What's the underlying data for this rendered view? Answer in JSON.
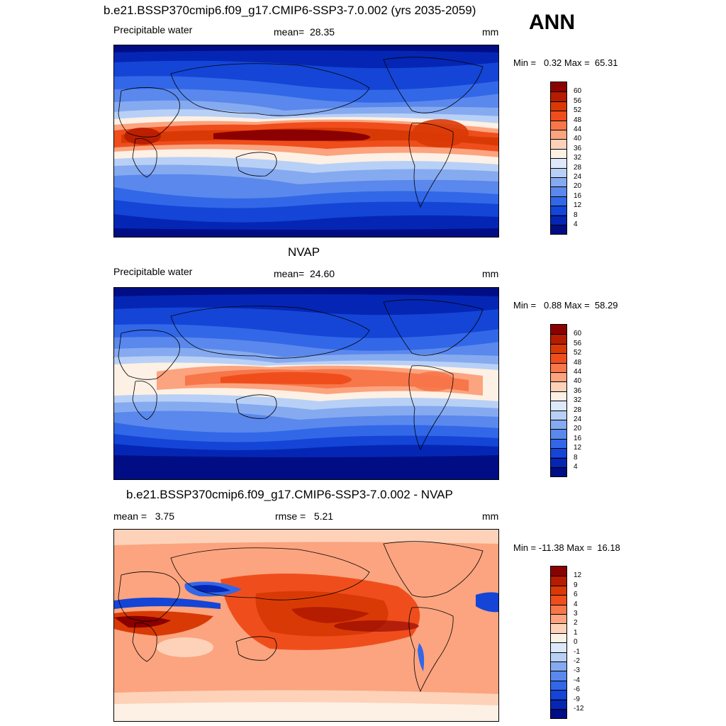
{
  "header": {
    "case_title": "b.e21.BSSP370cmip6.f09_g17.CMIP6-SSP3-7.0.002 (yrs 2035-2059)",
    "season": "ANN"
  },
  "panels": [
    {
      "id": "model",
      "left_label": "Precipitable water",
      "center_label": "mean=  28.35",
      "units": "mm",
      "minmax": "Min =   0.32 Max =  65.31",
      "colorbar": {
        "labels": [
          "60",
          "56",
          "52",
          "48",
          "44",
          "40",
          "36",
          "32",
          "28",
          "24",
          "20",
          "16",
          "12",
          "8",
          "4"
        ],
        "colors": [
          "#8b0000",
          "#b61c00",
          "#d93a05",
          "#ef4e1c",
          "#f7764a",
          "#fba47f",
          "#fdd2b8",
          "#fdf0e4",
          "#dde9fb",
          "#b8d0f6",
          "#86aaf0",
          "#5a88ec",
          "#3267e8",
          "#1445d6",
          "#0526b4",
          "#000d84"
        ]
      }
    },
    {
      "id": "obs",
      "title": "NVAP",
      "left_label": "Precipitable water",
      "center_label": "mean=  24.60",
      "units": "mm",
      "minmax": "Min =   0.88 Max =  58.29",
      "colorbar": {
        "labels": [
          "60",
          "56",
          "52",
          "48",
          "44",
          "40",
          "36",
          "32",
          "28",
          "24",
          "20",
          "16",
          "12",
          "8",
          "4"
        ],
        "colors": [
          "#8b0000",
          "#b61c00",
          "#d93a05",
          "#ef4e1c",
          "#f7764a",
          "#fba47f",
          "#fdd2b8",
          "#fdf0e4",
          "#dde9fb",
          "#b8d0f6",
          "#86aaf0",
          "#5a88ec",
          "#3267e8",
          "#1445d6",
          "#0526b4",
          "#000d84"
        ]
      }
    },
    {
      "id": "diff",
      "title": "b.e21.BSSP370cmip6.f09_g17.CMIP6-SSP3-7.0.002 - NVAP",
      "left_label": "mean =   3.75",
      "center_label": "rmse =   5.21",
      "units": "mm",
      "minmax": "Min = -11.38 Max =  16.18",
      "colorbar": {
        "labels": [
          "12",
          "9",
          "6",
          "4",
          "3",
          "2",
          "1",
          "0",
          "-1",
          "-2",
          "-3",
          "-4",
          "-6",
          "-9",
          "-12"
        ],
        "colors": [
          "#8b0000",
          "#b61c00",
          "#d93a05",
          "#ef4e1c",
          "#f7764a",
          "#fba47f",
          "#fdd2b8",
          "#fdf0e4",
          "#dde9fb",
          "#b8d0f6",
          "#86aaf0",
          "#5a88ec",
          "#3267e8",
          "#1445d6",
          "#0526b4",
          "#000d84"
        ]
      }
    }
  ],
  "chart_data": [
    {
      "type": "heatmap",
      "title": "b.e21.BSSP370cmip6.f09_g17.CMIP6-SSP3-7.0.002 (yrs 2035-2059)",
      "variable": "Precipitable water",
      "units": "mm",
      "mean": 28.35,
      "min": 0.32,
      "max": 65.31,
      "colorbar_levels": [
        4,
        8,
        12,
        16,
        20,
        24,
        28,
        32,
        36,
        40,
        44,
        48,
        52,
        56,
        60
      ]
    },
    {
      "type": "heatmap",
      "title": "NVAP",
      "variable": "Precipitable water",
      "units": "mm",
      "mean": 24.6,
      "min": 0.88,
      "max": 58.29,
      "colorbar_levels": [
        4,
        8,
        12,
        16,
        20,
        24,
        28,
        32,
        36,
        40,
        44,
        48,
        52,
        56,
        60
      ]
    },
    {
      "type": "heatmap",
      "title": "b.e21.BSSP370cmip6.f09_g17.CMIP6-SSP3-7.0.002 - NVAP",
      "units": "mm",
      "mean": 3.75,
      "rmse": 5.21,
      "min": -11.38,
      "max": 16.18,
      "colorbar_levels": [
        -12,
        -9,
        -6,
        -4,
        -3,
        -2,
        -1,
        0,
        1,
        2,
        3,
        4,
        6,
        9,
        12
      ]
    }
  ]
}
